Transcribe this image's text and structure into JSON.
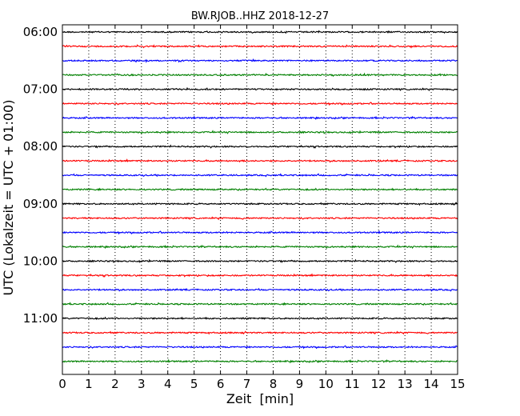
{
  "chart_data": {
    "type": "line",
    "title": "BW.RJOB..HHZ 2018-12-27",
    "xlabel": "Zeit  [min]",
    "ylabel": "UTC (Lokalzeit = UTC + 01:00)",
    "xlim": [
      0,
      15
    ],
    "x_ticks": [
      "0",
      "1",
      "2",
      "3",
      "4",
      "5",
      "6",
      "7",
      "8",
      "9",
      "10",
      "11",
      "12",
      "13",
      "14",
      "15"
    ],
    "y_ticks": [
      "06:00",
      "07:00",
      "08:00",
      "09:00",
      "10:00",
      "11:00"
    ],
    "grid": "vertical dotted",
    "trace_colors": [
      "#000000",
      "#ff0000",
      "#0000ff",
      "#008000"
    ],
    "traces": [
      "06:00",
      "06:15",
      "06:30",
      "06:45",
      "07:00",
      "07:15",
      "07:30",
      "07:45",
      "08:00",
      "08:15",
      "08:30",
      "08:45",
      "09:00",
      "09:15",
      "09:30",
      "09:45",
      "10:00",
      "10:15",
      "10:30",
      "10:45",
      "11:00",
      "11:15",
      "11:30",
      "11:45"
    ]
  }
}
